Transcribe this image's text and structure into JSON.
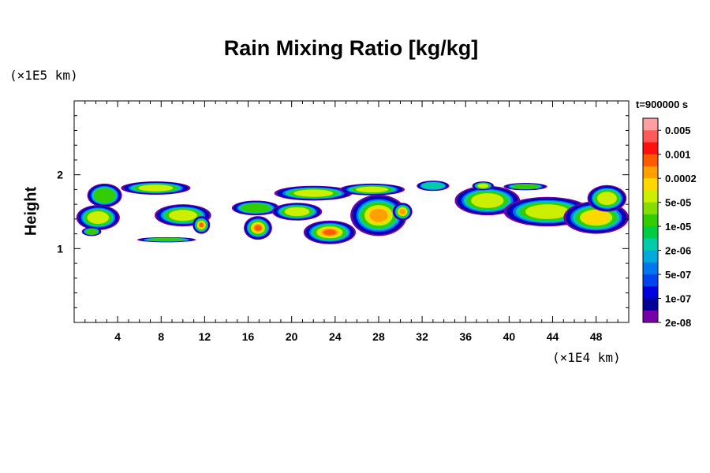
{
  "chart_data": {
    "type": "heatmap",
    "title": "Rain Mixing Ratio [kg/kg]",
    "ylabel": "Height",
    "y_unit": "(×1E5 km)",
    "x_unit": "(×1E4 km)",
    "timestamp": "t=900000 s",
    "xlim": [
      0,
      51
    ],
    "ylim": [
      0,
      3
    ],
    "x_ticks": [
      "4",
      "8",
      "12",
      "16",
      "20",
      "24",
      "28",
      "32",
      "36",
      "40",
      "44",
      "48"
    ],
    "y_ticks": [
      "1",
      "2"
    ],
    "colorbar": {
      "labels": [
        "0.005",
        "0.001",
        "0.0002",
        "5e-05",
        "1e-05",
        "2e-06",
        "5e-07",
        "1e-07",
        "2e-08"
      ],
      "colors": [
        "#ff9f9f",
        "#ff5a5a",
        "#ff1010",
        "#ff5a00",
        "#ffa000",
        "#ffd800",
        "#ccee00",
        "#88dd00",
        "#33cc00",
        "#00cc44",
        "#00ccaa",
        "#00aadd",
        "#0077ee",
        "#0044ee",
        "#0000dd",
        "#000099",
        "#7700aa"
      ]
    },
    "blobs": [
      {
        "x": 2.8,
        "y": 1.72,
        "rx": 1.6,
        "ry": 0.16,
        "level": 2
      },
      {
        "x": 2.2,
        "y": 1.42,
        "rx": 2.0,
        "ry": 0.17,
        "level": 3
      },
      {
        "x": 1.6,
        "y": 1.23,
        "rx": 0.9,
        "ry": 0.06,
        "level": 2
      },
      {
        "x": 7.5,
        "y": 1.82,
        "rx": 3.2,
        "ry": 0.09,
        "level": 3
      },
      {
        "x": 10.0,
        "y": 1.45,
        "rx": 2.6,
        "ry": 0.15,
        "level": 3
      },
      {
        "x": 11.7,
        "y": 1.32,
        "rx": 0.8,
        "ry": 0.12,
        "level": 6
      },
      {
        "x": 8.5,
        "y": 1.12,
        "rx": 2.7,
        "ry": 0.035,
        "level": 2
      },
      {
        "x": 16.9,
        "y": 1.28,
        "rx": 1.3,
        "ry": 0.16,
        "level": 6
      },
      {
        "x": 16.7,
        "y": 1.55,
        "rx": 2.2,
        "ry": 0.1,
        "level": 2
      },
      {
        "x": 22.0,
        "y": 1.75,
        "rx": 3.6,
        "ry": 0.1,
        "level": 3
      },
      {
        "x": 20.5,
        "y": 1.5,
        "rx": 2.3,
        "ry": 0.12,
        "level": 3
      },
      {
        "x": 23.5,
        "y": 1.22,
        "rx": 2.4,
        "ry": 0.16,
        "level": 6
      },
      {
        "x": 28.0,
        "y": 1.45,
        "rx": 2.6,
        "ry": 0.28,
        "level": 5
      },
      {
        "x": 27.4,
        "y": 1.8,
        "rx": 3.0,
        "ry": 0.08,
        "level": 3
      },
      {
        "x": 30.2,
        "y": 1.5,
        "rx": 0.9,
        "ry": 0.12,
        "level": 5
      },
      {
        "x": 33.0,
        "y": 1.85,
        "rx": 1.5,
        "ry": 0.07,
        "level": 1
      },
      {
        "x": 38.0,
        "y": 1.65,
        "rx": 3.0,
        "ry": 0.2,
        "level": 3
      },
      {
        "x": 37.6,
        "y": 1.85,
        "rx": 1.0,
        "ry": 0.06,
        "level": 3
      },
      {
        "x": 43.5,
        "y": 1.5,
        "rx": 4.0,
        "ry": 0.2,
        "level": 3
      },
      {
        "x": 48.0,
        "y": 1.42,
        "rx": 3.0,
        "ry": 0.22,
        "level": 4
      },
      {
        "x": 41.5,
        "y": 1.84,
        "rx": 2.0,
        "ry": 0.05,
        "level": 2
      },
      {
        "x": 49.0,
        "y": 1.68,
        "rx": 1.8,
        "ry": 0.18,
        "level": 3
      }
    ]
  }
}
